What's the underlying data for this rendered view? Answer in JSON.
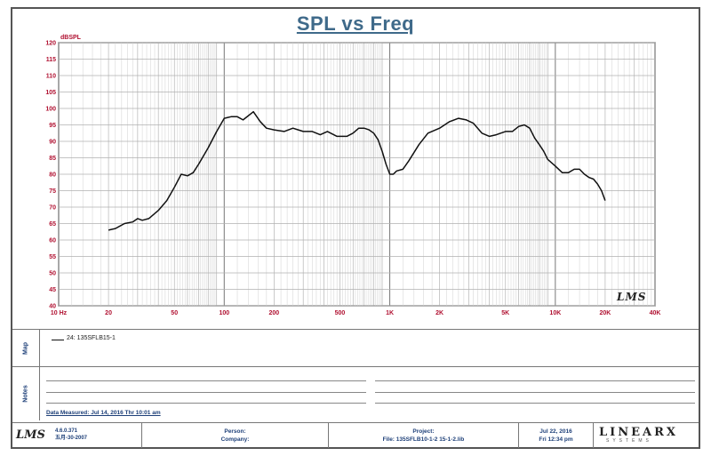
{
  "chart_data": {
    "type": "line",
    "title": "SPL vs Freq",
    "y_unit_label": "dBSPL",
    "x_scale": "log",
    "xlim": [
      10,
      40000
    ],
    "ylim": [
      40,
      120
    ],
    "grid": true,
    "x_ticks": [
      {
        "value": 10,
        "label": "10 Hz"
      },
      {
        "value": 20,
        "label": "20"
      },
      {
        "value": 50,
        "label": "50"
      },
      {
        "value": 100,
        "label": "100"
      },
      {
        "value": 200,
        "label": "200"
      },
      {
        "value": 500,
        "label": "500"
      },
      {
        "value": 1000,
        "label": "1K"
      },
      {
        "value": 2000,
        "label": "2K"
      },
      {
        "value": 5000,
        "label": "5K"
      },
      {
        "value": 10000,
        "label": "10K"
      },
      {
        "value": 20000,
        "label": "20K"
      },
      {
        "value": 40000,
        "label": "40K"
      }
    ],
    "y_ticks": [
      120,
      115,
      110,
      105,
      100,
      95,
      90,
      85,
      80,
      75,
      70,
      65,
      60,
      55,
      50,
      45,
      40
    ],
    "series": [
      {
        "name": "24: 135SFLB15-1",
        "color": "#111111",
        "x": [
          20,
          22,
          25,
          28,
          30,
          32,
          35,
          40,
          45,
          50,
          55,
          60,
          65,
          70,
          80,
          90,
          100,
          110,
          120,
          130,
          150,
          165,
          180,
          200,
          230,
          260,
          280,
          300,
          340,
          380,
          420,
          480,
          550,
          600,
          650,
          700,
          750,
          800,
          850,
          900,
          950,
          1000,
          1050,
          1100,
          1200,
          1300,
          1500,
          1700,
          2000,
          2300,
          2600,
          2900,
          3200,
          3600,
          4000,
          4400,
          5000,
          5500,
          6000,
          6500,
          7000,
          7500,
          8000,
          8500,
          9000,
          10000,
          11000,
          12000,
          13000,
          14000,
          15000,
          16000,
          17000,
          18000,
          19000,
          20000
        ],
        "y": [
          63,
          63.5,
          65,
          65.5,
          66.5,
          66,
          66.5,
          69,
          72,
          76,
          80,
          79.5,
          80.5,
          83,
          88,
          93,
          97,
          97.5,
          97.5,
          96.5,
          99,
          96,
          94,
          93.5,
          93,
          94,
          93.5,
          93,
          93,
          92,
          93,
          91.5,
          91.5,
          92.5,
          94,
          94,
          93.5,
          92.5,
          90.5,
          87,
          83,
          80,
          80,
          81,
          81.5,
          84,
          89,
          92.5,
          94,
          96,
          97,
          96.5,
          95.5,
          92.5,
          91.5,
          92,
          93,
          93,
          94.5,
          95,
          94,
          91,
          89,
          87,
          84.5,
          82.5,
          80.5,
          80.5,
          81.5,
          81.5,
          80,
          79,
          78.5,
          77,
          75,
          72
        ]
      }
    ],
    "legend": "24: 135SFLB15-1"
  },
  "notes": {
    "date_measured": "Data Measured: Jul 14, 2016  Thr 10:01 am"
  },
  "side_labels": {
    "map": "Map",
    "notes": "Notes"
  },
  "footer": {
    "logo": "LMS",
    "version": "4.6.0.371",
    "version_date": "五月-30-2007",
    "person_label": "Person:",
    "company_label": "Company:",
    "project_label": "Project:",
    "file_label": "File: 135SFLB10-1-2 15-1-2.lib",
    "date1": "Jul 22, 2016",
    "date2": "Fri 12:34 pm",
    "brand": "LINEARX",
    "brand_sub": "SYSTEMS"
  },
  "watermark": "LMS",
  "colors": {
    "title": "#3f6a8a",
    "tick_label": "#b01030",
    "grid": "#b8b8b8",
    "footer_text": "#1d3f78"
  }
}
